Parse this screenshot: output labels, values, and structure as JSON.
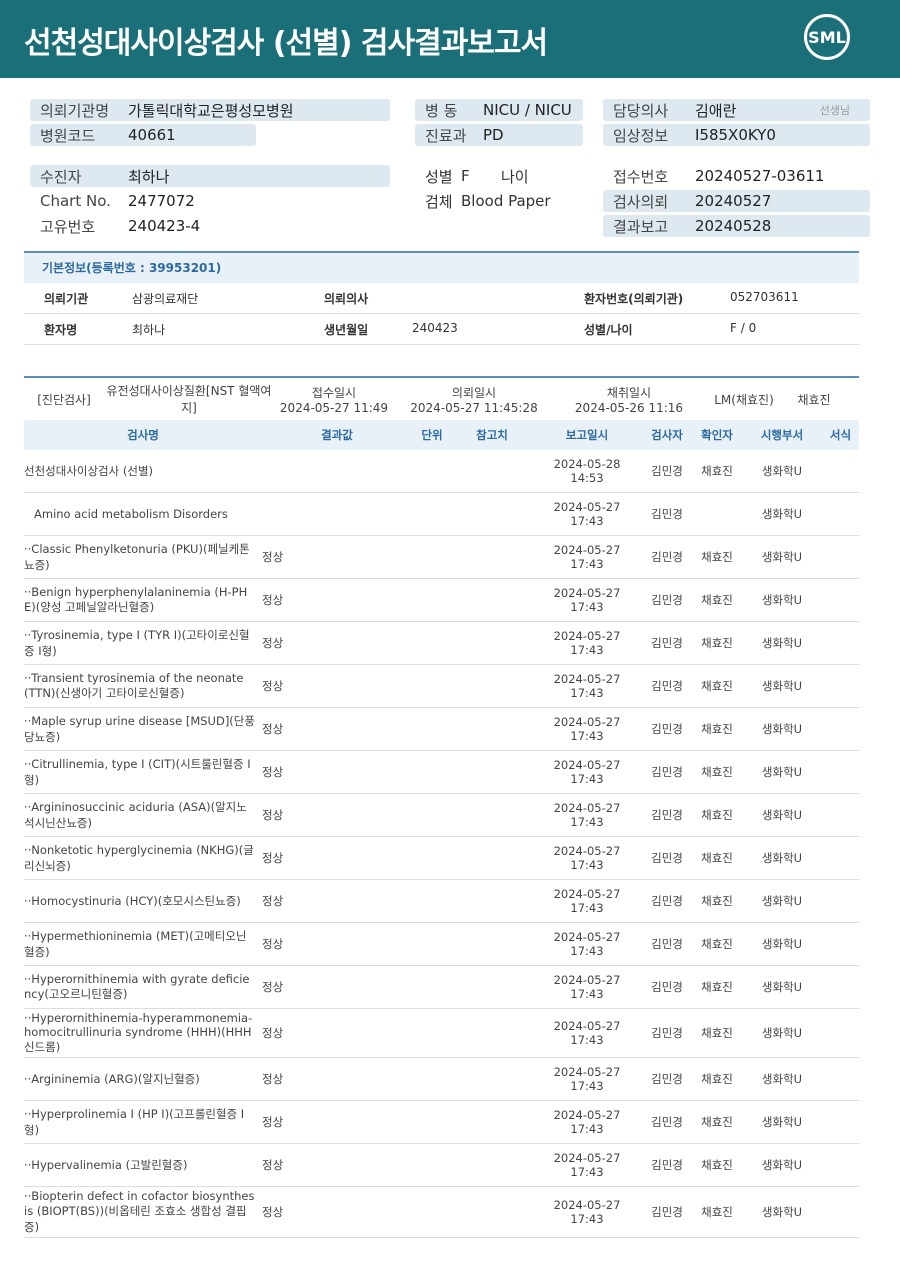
{
  "header": {
    "title": "선천성대사이상검사 (선별) 검사결과보고서",
    "logo": "SML"
  },
  "info": {
    "left": [
      {
        "label": "의뢰기관명",
        "value": "가톨릭대학교은평성모병원"
      },
      {
        "label": "병원코드",
        "value": "40661"
      }
    ],
    "mid": [
      {
        "label": "병 동",
        "value": "NICU / NICU"
      },
      {
        "label": "진료과",
        "value": "PD"
      }
    ],
    "right": [
      {
        "label": "담당의사",
        "value": "김애란",
        "note": "선생님"
      },
      {
        "label": "임상정보",
        "value": "I585X0KY0"
      }
    ]
  },
  "patient": {
    "left": [
      {
        "label": "수진자",
        "value": "최하나"
      },
      {
        "label": "Chart No.",
        "value": "2477072"
      },
      {
        "label": "고유번호",
        "value": "240423-4"
      }
    ],
    "sex_label": "성별",
    "sex": "F",
    "age_label": "나이",
    "specimen_label": "검체",
    "specimen": "Blood Paper",
    "right": [
      {
        "label": "접수번호",
        "value": "20240527-03611"
      },
      {
        "label": "검사의뢰",
        "value": "20240527"
      },
      {
        "label": "결과보고",
        "value": "20240528"
      }
    ]
  },
  "basic": {
    "title": "기본정보(등록번호 : 39953201)",
    "rows": [
      [
        {
          "label": "의뢰기관",
          "value": "삼광의료재단"
        },
        {
          "label": "의뢰의사"
        },
        {
          "label": "환자번호(의뢰기관)",
          "value": "052703611"
        }
      ],
      [
        {
          "label": "환자명",
          "value": "최하나"
        },
        {
          "label": "생년월일",
          "value": "240423"
        },
        {
          "label": "성별/나이",
          "value": "F / 0"
        }
      ]
    ]
  },
  "order": {
    "category": "[진단검사]",
    "test": "유전성대사이상질환[NST 혈액여지]",
    "received_label": "접수일시",
    "received": "2024-05-27 11:49",
    "requested_label": "의뢰일시",
    "requested": "2024-05-27 11:45:28",
    "collected_label": "채취일시",
    "collected": "2024-05-26 11:16",
    "lab": "LM(채효진)",
    "person": "채효진"
  },
  "table": {
    "columns": [
      "검사명",
      "결과값",
      "단위",
      "참고치",
      "보고일시",
      "검사자",
      "확인자",
      "시행부서",
      "서식"
    ],
    "rows": [
      {
        "name": "선천성대사이상검사 (선별)",
        "date": "2024-05-28",
        "time": "14:53",
        "tester": "김민경",
        "confirmer": "채효진",
        "dept": "생화학U"
      },
      {
        "name": "Amino acid metabolism Disorders",
        "date": "2024-05-27",
        "time": "17:43",
        "tester": "김민경",
        "dept": "생화학U"
      },
      {
        "name": "··Classic Phenylketonuria (PKU)(페닐케톤뇨증)",
        "result": "정상",
        "date": "2024-05-27",
        "time": "17:43",
        "tester": "김민경",
        "confirmer": "채효진",
        "dept": "생화학U"
      },
      {
        "name": "··Benign hyperphenylalaninemia (H-PHE)(양성 고페닐알라닌혈증)",
        "result": "정상",
        "date": "2024-05-27",
        "time": "17:43",
        "tester": "김민경",
        "confirmer": "채효진",
        "dept": "생화학U"
      },
      {
        "name": "··Tyrosinemia, type I (TYR I)(고타이로신혈증 I형)",
        "result": "정상",
        "date": "2024-05-27",
        "time": "17:43",
        "tester": "김민경",
        "confirmer": "채효진",
        "dept": "생화학U"
      },
      {
        "name": "··Transient tyrosinemia of the neonate (TTN)(신생아기 고타이로신혈증)",
        "result": "정상",
        "date": "2024-05-27",
        "time": "17:43",
        "tester": "김민경",
        "confirmer": "채효진",
        "dept": "생화학U"
      },
      {
        "name": "··Maple syrup urine disease [MSUD](단풍당뇨증)",
        "result": "정상",
        "date": "2024-05-27",
        "time": "17:43",
        "tester": "김민경",
        "confirmer": "채효진",
        "dept": "생화학U"
      },
      {
        "name": "··Citrullinemia, type I (CIT)(시트룰린혈증 I형)",
        "result": "정상",
        "date": "2024-05-27",
        "time": "17:43",
        "tester": "김민경",
        "confirmer": "채효진",
        "dept": "생화학U"
      },
      {
        "name": "··Argininosuccinic aciduria (ASA)(알지노석시닌산뇨증)",
        "result": "정상",
        "date": "2024-05-27",
        "time": "17:43",
        "tester": "김민경",
        "confirmer": "채효진",
        "dept": "생화학U"
      },
      {
        "name": "··Nonketotic hyperglycinemia (NKHG)(글리신뇌증)",
        "result": "정상",
        "date": "2024-05-27",
        "time": "17:43",
        "tester": "김민경",
        "confirmer": "채효진",
        "dept": "생화학U"
      },
      {
        "name": "··Homocystinuria (HCY)(호모시스틴뇨증)",
        "result": "정상",
        "date": "2024-05-27",
        "time": "17:43",
        "tester": "김민경",
        "confirmer": "채효진",
        "dept": "생화학U"
      },
      {
        "name": "··Hypermethioninemia (MET)(고메티오닌혈증)",
        "result": "정상",
        "date": "2024-05-27",
        "time": "17:43",
        "tester": "김민경",
        "confirmer": "채효진",
        "dept": "생화학U"
      },
      {
        "name": "··Hyperornithinemia with gyrate deficiency(고오르니틴혈증)",
        "result": "정상",
        "date": "2024-05-27",
        "time": "17:43",
        "tester": "김민경",
        "confirmer": "채효진",
        "dept": "생화학U"
      },
      {
        "name": "··Hyperornithinemia-hyperammonemia-homocitrullinuria syndrome (HHH)(HHH신드롬)",
        "result": "정상",
        "date": "2024-05-27",
        "time": "17:43",
        "tester": "김민경",
        "confirmer": "채효진",
        "dept": "생화학U"
      },
      {
        "name": "··Argininemia (ARG)(알지닌혈증)",
        "result": "정상",
        "date": "2024-05-27",
        "time": "17:43",
        "tester": "김민경",
        "confirmer": "채효진",
        "dept": "생화학U"
      },
      {
        "name": "··Hyperprolinemia I (HP I)(고프롤린혈증 I형)",
        "result": "정상",
        "date": "2024-05-27",
        "time": "17:43",
        "tester": "김민경",
        "confirmer": "채효진",
        "dept": "생화학U"
      },
      {
        "name": "··Hypervalinemia (고발린혈증)",
        "result": "정상",
        "date": "2024-05-27",
        "time": "17:43",
        "tester": "김민경",
        "confirmer": "채효진",
        "dept": "생화학U"
      },
      {
        "name": "··Biopterin defect in cofactor biosynthesis (BIOPT(BS))(비옵테린 조효소 생합성 결핍증)",
        "result": "정상",
        "date": "2024-05-27",
        "time": "17:43",
        "tester": "김민경",
        "confirmer": "채효진",
        "dept": "생화학U"
      }
    ]
  }
}
